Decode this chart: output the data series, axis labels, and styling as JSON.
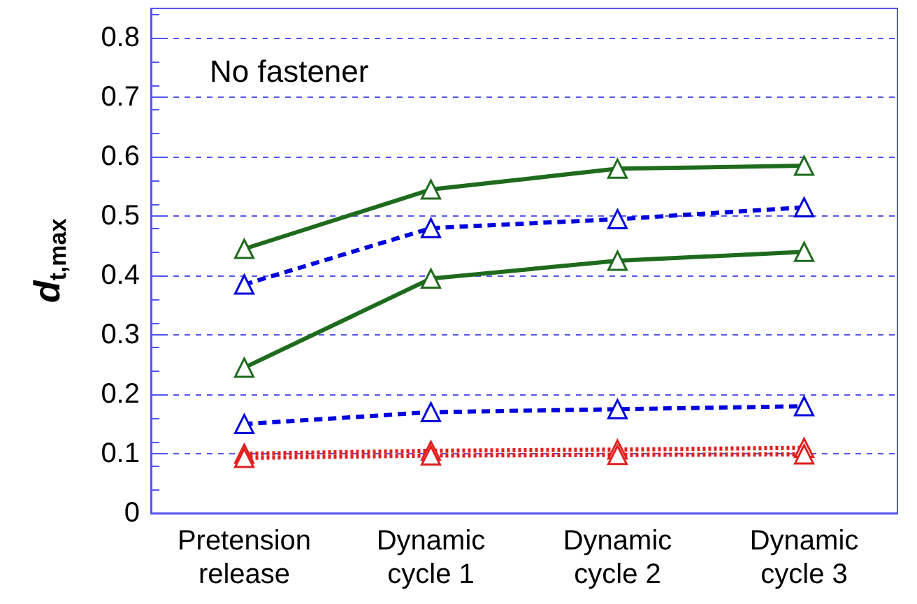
{
  "chart_data": {
    "type": "line",
    "ylabel": "d$_{t,max}$",
    "annotations": [
      "No fastener"
    ],
    "categories": [
      "Pretension\nrelease",
      "Dynamic\ncycle 1",
      "Dynamic\ncycle 2",
      "Dynamic\ncycle 3"
    ],
    "series": [
      {
        "color": "#1e6b1e",
        "line_style": "solid",
        "values": [
          0.445,
          0.545,
          0.58,
          0.585
        ]
      },
      {
        "color": "#0000dd",
        "line_style": "dashed",
        "values": [
          0.385,
          0.48,
          0.495,
          0.515
        ]
      },
      {
        "color": "#1e6b1e",
        "line_style": "solid",
        "values": [
          0.245,
          0.395,
          0.425,
          0.44
        ]
      },
      {
        "color": "#0000dd",
        "line_style": "dashed",
        "values": [
          0.15,
          0.17,
          0.175,
          0.18
        ]
      },
      {
        "color": "#e02020",
        "line_style": "dotted",
        "values": [
          0.1,
          0.105,
          0.107,
          0.11
        ]
      },
      {
        "color": "#e02020",
        "line_style": "dotted",
        "values": [
          0.093,
          0.097,
          0.098,
          0.099
        ]
      }
    ],
    "ylim": [
      0,
      0.85
    ],
    "yticks": [
      0,
      0.1,
      0.2,
      0.3,
      0.4,
      0.5,
      0.6,
      0.7,
      0.8
    ],
    "grid": "y",
    "marker": "triangle"
  }
}
